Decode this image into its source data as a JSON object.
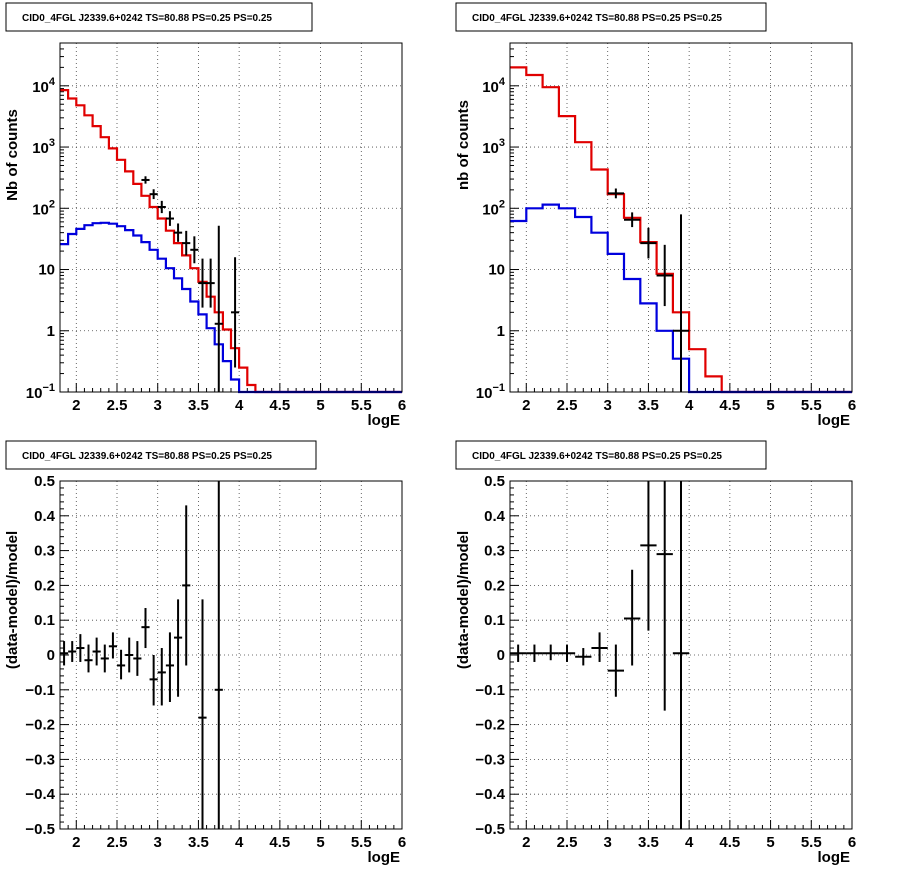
{
  "colors": {
    "model_total": "#e00000",
    "model_source": "#0000dd",
    "data": "#000000",
    "grid": "#444444"
  },
  "chart_data": [
    {
      "type": "line",
      "title": "CID0_4FGL J2339.6+0242 TS=80.88 PS=0.25 PS=0.25",
      "xlabel": "logE",
      "ylabel": "Nb of counts",
      "xlim": [
        1.8,
        6
      ],
      "ylim": [
        0.1,
        50000
      ],
      "yscale": "log",
      "grid": true,
      "xticks": [
        "2",
        "2.5",
        "3",
        "3.5",
        "4",
        "4.5",
        "5",
        "5.5",
        "6"
      ],
      "yticks": [
        {
          "v": 0.1,
          "base": "10",
          "exp": "−1"
        },
        {
          "v": 1,
          "label": "1"
        },
        {
          "v": 10,
          "label": "10"
        },
        {
          "v": 100,
          "base": "10",
          "exp": "2"
        },
        {
          "v": 1000,
          "base": "10",
          "exp": "3"
        },
        {
          "v": 10000,
          "base": "10",
          "exp": "4"
        }
      ],
      "series": [
        {
          "kind": "step",
          "color": "model_total",
          "edges": [
            1.8,
            1.9,
            2.0,
            2.1,
            2.2,
            2.3,
            2.4,
            2.5,
            2.6,
            2.7,
            2.8,
            2.9,
            3.0,
            3.1,
            3.2,
            3.3,
            3.4,
            3.5,
            3.6,
            3.7,
            3.8,
            3.9,
            4.0,
            4.1,
            4.2,
            4.3,
            4.4,
            4.5,
            4.6,
            4.7,
            4.8,
            4.9,
            5.0,
            5.1,
            5.2,
            5.3,
            5.4,
            5.5,
            5.6,
            5.7,
            5.8,
            5.9,
            6.0
          ],
          "values": [
            8500,
            6200,
            4800,
            3300,
            2200,
            1450,
            950,
            620,
            400,
            250,
            160,
            105,
            68,
            43,
            27,
            17,
            10.5,
            6.3,
            3.6,
            2.0,
            1.05,
            0.52,
            0.25,
            0.13,
            0.1,
            0.1,
            0.1,
            0.1,
            0.1,
            0.1,
            0.1,
            0.1,
            0.1,
            0.1,
            0.1,
            0.1,
            0.1,
            0.1,
            0.1,
            0.1,
            0.1,
            0.1
          ]
        },
        {
          "kind": "step",
          "color": "model_source",
          "edges": [
            1.8,
            1.9,
            2.0,
            2.1,
            2.2,
            2.3,
            2.4,
            2.5,
            2.6,
            2.7,
            2.8,
            2.9,
            3.0,
            3.1,
            3.2,
            3.3,
            3.4,
            3.5,
            3.6,
            3.7,
            3.8,
            3.9,
            4.0,
            4.1,
            4.2,
            4.3,
            4.4,
            4.5,
            4.6,
            4.7,
            4.8,
            4.9,
            5.0,
            5.1,
            5.2,
            5.3,
            5.4,
            5.5,
            5.6,
            5.7,
            5.8,
            5.9,
            6.0
          ],
          "values": [
            26,
            38,
            46,
            53,
            57,
            58,
            56,
            51,
            44,
            36,
            28,
            21,
            15,
            10.5,
            7.2,
            4.8,
            3.0,
            1.85,
            1.1,
            0.6,
            0.32,
            0.16,
            0.1,
            0.1,
            0.1,
            0.1,
            0.1,
            0.1,
            0.1,
            0.1,
            0.1,
            0.1,
            0.1,
            0.1,
            0.1,
            0.1,
            0.1,
            0.1,
            0.1,
            0.1,
            0.1,
            0.1
          ]
        },
        {
          "kind": "errorbars",
          "color": "data",
          "xhalf": 0.05,
          "points": [
            [
              2.85,
              290,
              0.06
            ],
            [
              2.95,
              170,
              0.08
            ],
            [
              3.05,
              105,
              0.1
            ],
            [
              3.15,
              68,
              0.12
            ],
            [
              3.25,
              40,
              0.15
            ],
            [
              3.35,
              27,
              0.2
            ],
            [
              3.45,
              21,
              0.22
            ],
            [
              3.55,
              6,
              0.4
            ],
            [
              3.65,
              6,
              0.4
            ],
            [
              3.75,
              1.3,
              1.6
            ],
            [
              3.95,
              2,
              0.9
            ]
          ]
        }
      ]
    },
    {
      "type": "line",
      "title": "CID0_4FGL J2339.6+0242 TS=80.88 PS=0.25 PS=0.25",
      "xlabel": "logE",
      "ylabel": "nb of counts",
      "xlim": [
        1.8,
        6
      ],
      "ylim": [
        0.1,
        50000
      ],
      "yscale": "log",
      "grid": true,
      "xticks": [
        "2",
        "2.5",
        "3",
        "3.5",
        "4",
        "4.5",
        "5",
        "5.5",
        "6"
      ],
      "yticks": [
        {
          "v": 0.1,
          "base": "10",
          "exp": "−1"
        },
        {
          "v": 1,
          "label": "1"
        },
        {
          "v": 10,
          "label": "10"
        },
        {
          "v": 100,
          "base": "10",
          "exp": "2"
        },
        {
          "v": 1000,
          "base": "10",
          "exp": "3"
        },
        {
          "v": 10000,
          "base": "10",
          "exp": "4"
        }
      ],
      "series": [
        {
          "kind": "step",
          "color": "model_total",
          "edges": [
            1.8,
            2.0,
            2.2,
            2.4,
            2.6,
            2.8,
            3.0,
            3.2,
            3.4,
            3.6,
            3.8,
            4.0,
            4.2,
            4.4,
            4.6,
            4.8,
            5.0,
            5.2,
            5.4,
            5.6,
            5.8,
            6.0
          ],
          "values": [
            20000,
            15000,
            9500,
            3200,
            1200,
            430,
            170,
            70,
            28,
            8.5,
            2.0,
            0.5,
            0.18,
            0.1,
            0.1,
            0.1,
            0.1,
            0.1,
            0.1,
            0.1,
            0.1
          ]
        },
        {
          "kind": "step",
          "color": "model_source",
          "edges": [
            1.8,
            2.0,
            2.2,
            2.4,
            2.6,
            2.8,
            3.0,
            3.2,
            3.4,
            3.6,
            3.8,
            4.0,
            4.2,
            4.4,
            4.6,
            4.8,
            5.0,
            5.2,
            5.4,
            5.6,
            5.8,
            6.0
          ],
          "values": [
            62,
            100,
            115,
            100,
            72,
            40,
            18,
            7,
            2.8,
            1.0,
            0.35,
            0.1,
            0.1,
            0.1,
            0.1,
            0.1,
            0.1,
            0.1,
            0.1,
            0.1,
            0.1
          ]
        },
        {
          "kind": "errorbars",
          "color": "data",
          "xhalf": 0.1,
          "points": [
            [
              3.1,
              175,
              0.08
            ],
            [
              3.3,
              65,
              0.12
            ],
            [
              3.5,
              27,
              0.25
            ],
            [
              3.7,
              8,
              0.5
            ],
            [
              3.9,
              1,
              1.9
            ]
          ]
        }
      ]
    },
    {
      "type": "scatter",
      "title": "CID0_4FGL J2339.6+0242 TS=80.88 PS=0.25 PS=0.25",
      "xlabel": "logE",
      "ylabel": "(data-model)/model",
      "xlim": [
        1.8,
        6
      ],
      "ylim": [
        -0.5,
        0.5
      ],
      "yscale": "linear",
      "grid": true,
      "xticks": [
        "2",
        "2.5",
        "3",
        "3.5",
        "4",
        "4.5",
        "5",
        "5.5",
        "6"
      ],
      "yticks": [
        {
          "v": -0.5,
          "label": "−0.5"
        },
        {
          "v": -0.4,
          "label": "−0.4"
        },
        {
          "v": -0.3,
          "label": "−0.3"
        },
        {
          "v": -0.2,
          "label": "−0.2"
        },
        {
          "v": -0.1,
          "label": "−0.1"
        },
        {
          "v": 0,
          "label": "0"
        },
        {
          "v": 0.1,
          "label": "0.1"
        },
        {
          "v": 0.2,
          "label": "0.2"
        },
        {
          "v": 0.3,
          "label": "0.3"
        },
        {
          "v": 0.4,
          "label": "0.4"
        },
        {
          "v": 0.5,
          "label": "0.5"
        }
      ],
      "series": [
        {
          "kind": "errorbars",
          "color": "data",
          "xhalf": 0.05,
          "points": [
            [
              1.85,
              0.005,
              -0.03,
              0.04
            ],
            [
              1.95,
              0.01,
              -0.02,
              0.04
            ],
            [
              2.05,
              0.02,
              -0.02,
              0.06
            ],
            [
              2.15,
              -0.015,
              -0.05,
              0.03
            ],
            [
              2.25,
              0.01,
              -0.03,
              0.05
            ],
            [
              2.35,
              -0.01,
              -0.05,
              0.03
            ],
            [
              2.45,
              0.025,
              -0.01,
              0.065
            ],
            [
              2.55,
              -0.03,
              -0.07,
              0.015
            ],
            [
              2.65,
              0.0,
              -0.05,
              0.05
            ],
            [
              2.75,
              -0.01,
              -0.06,
              0.04
            ],
            [
              2.85,
              0.08,
              0.02,
              0.135
            ],
            [
              2.95,
              -0.07,
              -0.145,
              0.0
            ],
            [
              3.05,
              -0.05,
              -0.145,
              0.02
            ],
            [
              3.15,
              -0.03,
              -0.135,
              0.065
            ],
            [
              3.25,
              0.05,
              -0.12,
              0.16
            ],
            [
              3.35,
              0.2,
              -0.03,
              0.43
            ],
            [
              3.55,
              -0.18,
              -0.5,
              0.16
            ],
            [
              3.75,
              -0.1,
              -0.5,
              0.5
            ]
          ]
        }
      ]
    },
    {
      "type": "scatter",
      "title": "CID0_4FGL J2339.6+0242 TS=80.88 PS=0.25 PS=0.25",
      "xlabel": "logE",
      "ylabel": "(data-model)/model",
      "xlim": [
        1.8,
        6
      ],
      "ylim": [
        -0.5,
        0.5
      ],
      "yscale": "linear",
      "grid": true,
      "xticks": [
        "2",
        "2.5",
        "3",
        "3.5",
        "4",
        "4.5",
        "5",
        "5.5",
        "6"
      ],
      "yticks": [
        {
          "v": -0.5,
          "label": "−0.5"
        },
        {
          "v": -0.4,
          "label": "−0.4"
        },
        {
          "v": -0.3,
          "label": "−0.3"
        },
        {
          "v": -0.2,
          "label": "−0.2"
        },
        {
          "v": -0.1,
          "label": "−0.1"
        },
        {
          "v": 0,
          "label": "0"
        },
        {
          "v": 0.1,
          "label": "0.1"
        },
        {
          "v": 0.2,
          "label": "0.2"
        },
        {
          "v": 0.3,
          "label": "0.3"
        },
        {
          "v": 0.4,
          "label": "0.4"
        },
        {
          "v": 0.5,
          "label": "0.5"
        }
      ],
      "series": [
        {
          "kind": "errorbars",
          "color": "data",
          "xhalf": 0.1,
          "points": [
            [
              1.9,
              0.005,
              -0.02,
              0.03
            ],
            [
              2.1,
              0.005,
              -0.02,
              0.03
            ],
            [
              2.3,
              0.005,
              -0.015,
              0.03
            ],
            [
              2.5,
              0.005,
              -0.02,
              0.03
            ],
            [
              2.7,
              -0.005,
              -0.03,
              0.02
            ],
            [
              2.9,
              0.02,
              -0.02,
              0.065
            ],
            [
              3.1,
              -0.045,
              -0.12,
              0.03
            ],
            [
              3.3,
              0.105,
              -0.03,
              0.245
            ],
            [
              3.5,
              0.315,
              0.07,
              0.5
            ],
            [
              3.7,
              0.29,
              -0.16,
              0.5
            ],
            [
              3.9,
              0.005,
              -0.5,
              0.5
            ]
          ]
        }
      ]
    }
  ]
}
